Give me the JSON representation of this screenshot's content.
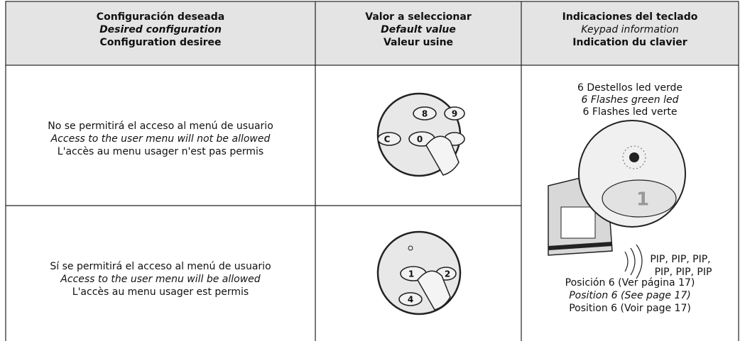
{
  "table": {
    "header": [
      [
        "Configuración deseada",
        "Desired configuration",
        "Configuration desiree"
      ],
      [
        "Valor a seleccionar",
        "Default value",
        "Valeur usine"
      ],
      [
        "Indicaciones del teclado",
        "Keypad information",
        "Indication du clavier"
      ]
    ],
    "rows": [
      {
        "configuration": [
          "No se permitirá el acceso al menú de usuario",
          "Access to the user menu will not be allowed",
          "L'accès au menu usager n'est pas permis"
        ],
        "keypad_keys": [
          "8",
          "9",
          "C",
          "0"
        ]
      },
      {
        "configuration": [
          "Sí se permitirá el acceso al menú de usuario",
          "Access to the user menu will be allowed",
          "L'accès au menu usager est permis"
        ],
        "keypad_keys": [
          "1",
          "2",
          "4"
        ]
      }
    ],
    "keypad_information": {
      "flashes": [
        "6 Destellos led verde",
        "6 Flashes green led",
        "6 Flashes led verte"
      ],
      "key": "1",
      "sound": [
        "PIP, PIP, PIP,",
        "PIP, PIP, PIP"
      ],
      "position": [
        "Posición 6 (Ver página 17)",
        "Position 6 (See page 17)",
        "Position 6 (Voir page 17)"
      ]
    }
  }
}
